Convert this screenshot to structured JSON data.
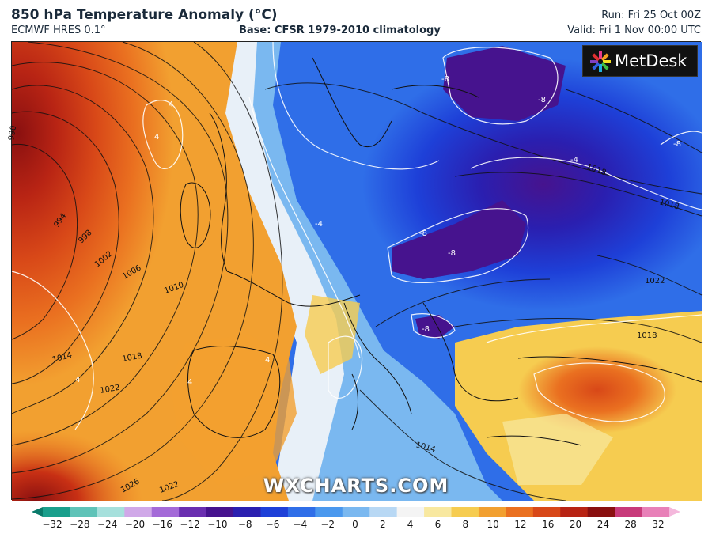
{
  "header": {
    "title": "850 hPa Temperature Anomaly (°C)",
    "model": "ECMWF HRES 0.1°",
    "base": "Base: CFSR 1979-2010 climatology",
    "run": "Run: Fri 25 Oct 00Z",
    "valid": "Valid: Fri 1 Nov 00:00 UTC"
  },
  "logo": {
    "text": "MetDesk"
  },
  "watermark": "WXCHARTS.COM",
  "isobar_labels": [
    "990",
    "994",
    "998",
    "1002",
    "1006",
    "1010",
    "1014",
    "1018",
    "1022",
    "1026",
    "1022",
    "1014",
    "1018",
    "1018",
    "1022",
    "1018"
  ],
  "anomaly_labels": [
    "4",
    "4",
    "-4",
    "-4",
    "-8",
    "-8",
    "-8",
    "-8",
    "-8",
    "-8",
    "4",
    "4",
    "4"
  ],
  "colorbar": {
    "ticks": [
      "−32",
      "−28",
      "−24",
      "−20",
      "−16",
      "−12",
      "−10",
      "−8",
      "−6",
      "−4",
      "−2",
      "0",
      "2",
      "4",
      "6",
      "8",
      "10",
      "12",
      "16",
      "20",
      "24",
      "28",
      "32"
    ],
    "colors": [
      "#0a7a6a",
      "#1a9f8c",
      "#5fc3b8",
      "#a6e0dc",
      "#d0a8e8",
      "#a46ad8",
      "#6a2fb0",
      "#46138e",
      "#2a1fb0",
      "#1e40d8",
      "#2f6ee8",
      "#4a98ee",
      "#7ab8f0",
      "#b8d8f4",
      "#f4f4f4",
      "#f8e8a0",
      "#f6cc50",
      "#f2a030",
      "#ea7020",
      "#d84818",
      "#b82414",
      "#8a1010",
      "#c83a7a",
      "#e880b8",
      "#f4b8dc"
    ]
  },
  "colors": {
    "warm_deep": "#8a1010",
    "warm_mid": "#d84818",
    "warm_light": "#f2a030",
    "cold_deep": "#46138e",
    "cold_mid": "#1e40d8",
    "cold_light": "#7ab8f0"
  }
}
